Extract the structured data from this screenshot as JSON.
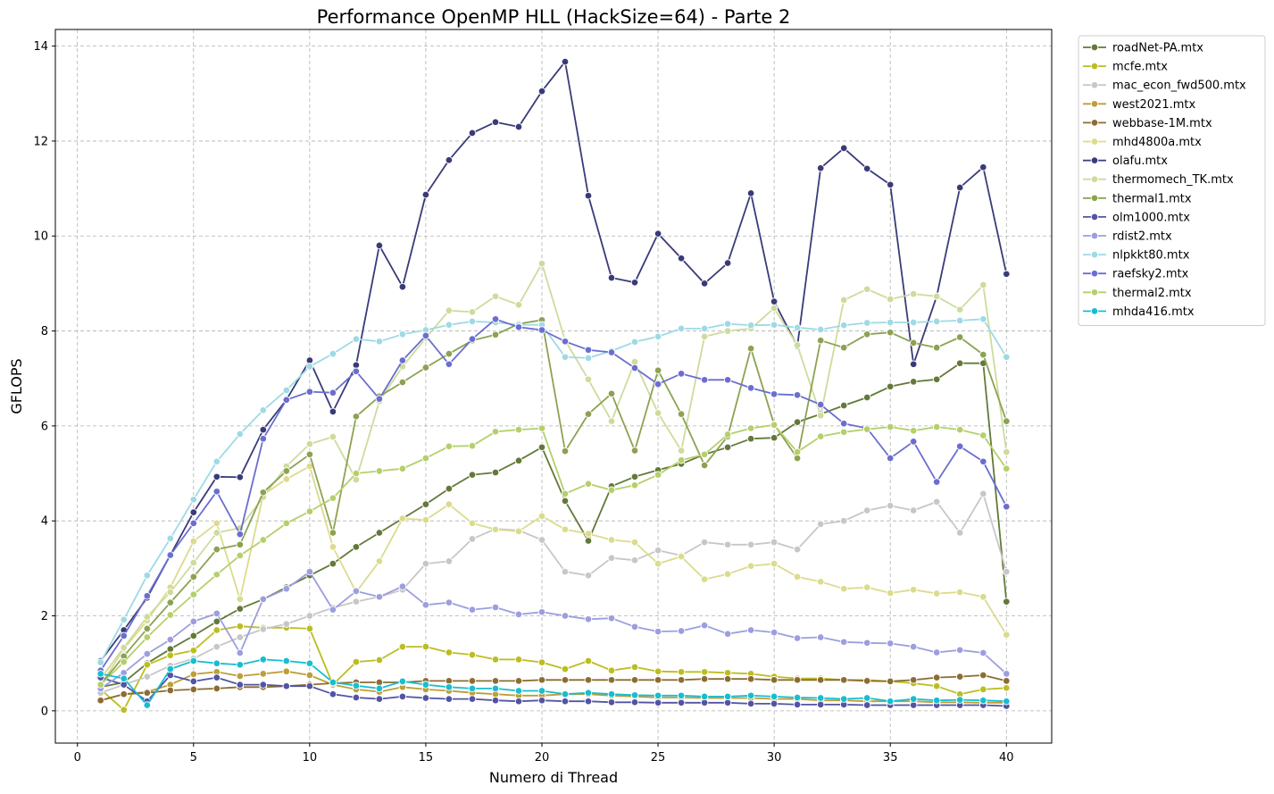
{
  "chart_data": {
    "type": "line",
    "title": "Performance OpenMP HLL (HackSize=64) - Parte 2",
    "xlabel": "Numero di Thread",
    "ylabel": "GFLOPS",
    "xlim": [
      -0.95,
      41.95
    ],
    "ylim": [
      -0.68,
      14.35
    ],
    "xticks": [
      0,
      5,
      10,
      15,
      20,
      25,
      30,
      35,
      40
    ],
    "yticks": [
      0,
      2,
      4,
      6,
      8,
      10,
      12,
      14
    ],
    "grid": true,
    "legend_position": "outside-top-right",
    "x": [
      1,
      2,
      3,
      4,
      5,
      6,
      7,
      8,
      9,
      10,
      11,
      12,
      13,
      14,
      15,
      16,
      17,
      18,
      19,
      20,
      21,
      22,
      23,
      24,
      25,
      26,
      27,
      28,
      29,
      30,
      31,
      32,
      33,
      34,
      35,
      36,
      37,
      38,
      39,
      40
    ],
    "series": [
      {
        "name": "roadNet-PA.mtx",
        "color": "#637939",
        "values": [
          0.5,
          0.6,
          1.0,
          1.3,
          1.58,
          1.88,
          2.15,
          2.35,
          2.6,
          2.85,
          3.1,
          3.45,
          3.75,
          4.05,
          4.35,
          4.68,
          4.97,
          5.02,
          5.27,
          5.55,
          4.42,
          3.58,
          4.73,
          4.93,
          5.07,
          5.2,
          5.4,
          5.55,
          5.73,
          5.75,
          6.08,
          6.25,
          6.43,
          6.6,
          6.83,
          6.93,
          6.98,
          7.32,
          7.32,
          2.3
        ]
      },
      {
        "name": "mcfe.mtx",
        "color": "#bcbd22",
        "values": [
          0.45,
          0.02,
          0.97,
          1.17,
          1.27,
          1.7,
          1.78,
          1.75,
          1.75,
          1.73,
          0.55,
          1.03,
          1.07,
          1.35,
          1.35,
          1.23,
          1.18,
          1.08,
          1.08,
          1.02,
          0.88,
          1.05,
          0.85,
          0.92,
          0.83,
          0.82,
          0.82,
          0.8,
          0.78,
          0.72,
          0.68,
          0.68,
          0.65,
          0.65,
          0.62,
          0.58,
          0.52,
          0.35,
          0.45,
          0.48
        ]
      },
      {
        "name": "mac_econ_fwd500.mtx",
        "color": "#c7c7c7",
        "values": [
          0.38,
          0.55,
          0.72,
          0.95,
          1.1,
          1.35,
          1.55,
          1.72,
          1.83,
          2.0,
          2.17,
          2.3,
          2.4,
          2.55,
          3.1,
          3.15,
          3.62,
          3.83,
          3.8,
          3.6,
          2.93,
          2.85,
          3.22,
          3.17,
          3.38,
          3.27,
          3.55,
          3.5,
          3.5,
          3.55,
          3.4,
          3.93,
          4.0,
          4.22,
          4.32,
          4.22,
          4.4,
          3.75,
          4.57,
          2.93
        ]
      },
      {
        "name": "west2021.mtx",
        "color": "#bd9e39",
        "values": [
          0.22,
          0.35,
          0.4,
          0.55,
          0.77,
          0.82,
          0.73,
          0.78,
          0.83,
          0.75,
          0.55,
          0.45,
          0.4,
          0.5,
          0.45,
          0.42,
          0.38,
          0.35,
          0.32,
          0.32,
          0.35,
          0.35,
          0.32,
          0.3,
          0.28,
          0.28,
          0.27,
          0.27,
          0.27,
          0.25,
          0.25,
          0.22,
          0.22,
          0.2,
          0.2,
          0.2,
          0.18,
          0.18,
          0.17,
          0.17
        ]
      },
      {
        "name": "webbase-1M.mtx",
        "color": "#8c6d31",
        "values": [
          0.22,
          0.35,
          0.38,
          0.43,
          0.45,
          0.47,
          0.5,
          0.5,
          0.52,
          0.55,
          0.58,
          0.6,
          0.6,
          0.6,
          0.63,
          0.63,
          0.63,
          0.63,
          0.63,
          0.65,
          0.65,
          0.65,
          0.65,
          0.65,
          0.65,
          0.65,
          0.67,
          0.67,
          0.67,
          0.65,
          0.65,
          0.65,
          0.65,
          0.63,
          0.62,
          0.65,
          0.7,
          0.72,
          0.75,
          0.63
        ]
      },
      {
        "name": "mhd4800a.mtx",
        "color": "#dbdb8d",
        "values": [
          0.55,
          1.3,
          1.9,
          2.6,
          3.57,
          3.95,
          2.35,
          4.55,
          4.88,
          5.15,
          3.45,
          2.5,
          3.15,
          4.05,
          4.02,
          4.35,
          3.95,
          3.82,
          3.78,
          4.1,
          3.82,
          3.73,
          3.6,
          3.55,
          3.1,
          3.25,
          2.77,
          2.88,
          3.05,
          3.1,
          2.82,
          2.72,
          2.57,
          2.6,
          2.48,
          2.55,
          2.47,
          2.5,
          2.4,
          1.6
        ]
      },
      {
        "name": "olafu.mtx",
        "color": "#393b79",
        "values": [
          1.05,
          1.7,
          2.38,
          3.28,
          4.18,
          4.93,
          4.92,
          5.92,
          6.55,
          7.38,
          6.3,
          7.28,
          9.8,
          8.93,
          10.87,
          11.6,
          12.17,
          12.4,
          12.3,
          13.05,
          13.67,
          10.85,
          9.12,
          9.02,
          10.05,
          9.53,
          9.0,
          9.43,
          10.9,
          8.62,
          7.68,
          11.43,
          11.85,
          11.42,
          11.08,
          7.3,
          8.73,
          11.02,
          11.45,
          9.2
        ]
      },
      {
        "name": "thermomech_TK.mtx",
        "color": "#cedb9c",
        "values": [
          0.68,
          1.33,
          1.98,
          2.5,
          3.12,
          3.75,
          3.85,
          4.5,
          5.15,
          5.62,
          5.77,
          4.87,
          6.52,
          7.25,
          7.85,
          8.43,
          8.4,
          8.73,
          8.55,
          9.42,
          7.8,
          6.98,
          6.1,
          7.35,
          6.27,
          5.48,
          7.88,
          8.0,
          8.05,
          8.48,
          7.7,
          6.22,
          8.65,
          8.88,
          8.67,
          8.78,
          8.73,
          8.45,
          8.97,
          5.45
        ]
      },
      {
        "name": "thermal1.mtx",
        "color": "#8ca252",
        "values": [
          0.55,
          1.15,
          1.73,
          2.28,
          2.82,
          3.4,
          3.5,
          4.6,
          5.05,
          5.4,
          3.75,
          6.2,
          6.62,
          6.92,
          7.23,
          7.52,
          7.8,
          7.92,
          8.15,
          8.23,
          5.47,
          6.25,
          6.68,
          5.48,
          7.17,
          6.25,
          5.17,
          5.78,
          7.63,
          6.03,
          5.32,
          7.8,
          7.65,
          7.93,
          7.97,
          7.75,
          7.65,
          7.87,
          7.5,
          6.1
        ]
      },
      {
        "name": "olm1000.mtx",
        "color": "#5254a3",
        "values": [
          0.7,
          0.55,
          0.2,
          0.75,
          0.62,
          0.7,
          0.55,
          0.55,
          0.52,
          0.52,
          0.35,
          0.28,
          0.25,
          0.3,
          0.27,
          0.25,
          0.25,
          0.22,
          0.2,
          0.22,
          0.2,
          0.2,
          0.18,
          0.18,
          0.17,
          0.17,
          0.17,
          0.17,
          0.15,
          0.15,
          0.13,
          0.13,
          0.13,
          0.12,
          0.12,
          0.12,
          0.12,
          0.12,
          0.12,
          0.1
        ]
      },
      {
        "name": "rdist2.mtx",
        "color": "#9c9ede",
        "values": [
          0.47,
          0.8,
          1.2,
          1.5,
          1.88,
          2.05,
          1.22,
          2.35,
          2.57,
          2.93,
          2.13,
          2.52,
          2.4,
          2.62,
          2.23,
          2.28,
          2.13,
          2.18,
          2.03,
          2.08,
          2.0,
          1.93,
          1.95,
          1.77,
          1.67,
          1.68,
          1.8,
          1.62,
          1.7,
          1.65,
          1.53,
          1.55,
          1.45,
          1.43,
          1.42,
          1.35,
          1.23,
          1.28,
          1.22,
          0.78
        ]
      },
      {
        "name": "nlpkkt80.mtx",
        "color": "#9edae5",
        "values": [
          1.02,
          1.92,
          2.85,
          3.63,
          4.45,
          5.25,
          5.83,
          6.33,
          6.75,
          7.25,
          7.52,
          7.83,
          7.78,
          7.93,
          8.02,
          8.13,
          8.2,
          8.18,
          8.13,
          8.13,
          7.45,
          7.43,
          7.58,
          7.77,
          7.88,
          8.05,
          8.05,
          8.15,
          8.12,
          8.13,
          8.07,
          8.03,
          8.12,
          8.17,
          8.18,
          8.18,
          8.2,
          8.22,
          8.25,
          7.45
        ]
      },
      {
        "name": "raefsky2.mtx",
        "color": "#6b6ecf",
        "values": [
          0.85,
          1.58,
          2.42,
          3.28,
          3.95,
          4.62,
          3.72,
          5.73,
          6.55,
          6.72,
          6.7,
          7.15,
          6.57,
          7.38,
          7.9,
          7.3,
          7.83,
          8.25,
          8.08,
          8.02,
          7.78,
          7.6,
          7.55,
          7.22,
          6.88,
          7.1,
          6.97,
          6.97,
          6.8,
          6.67,
          6.65,
          6.45,
          6.05,
          5.95,
          5.32,
          5.67,
          4.82,
          5.57,
          5.25,
          4.3
        ]
      },
      {
        "name": "thermal2.mtx",
        "color": "#b5cf6b",
        "values": [
          0.55,
          1.03,
          1.55,
          2.02,
          2.45,
          2.87,
          3.27,
          3.6,
          3.95,
          4.2,
          4.48,
          5.0,
          5.05,
          5.1,
          5.32,
          5.57,
          5.58,
          5.88,
          5.92,
          5.95,
          4.57,
          4.78,
          4.65,
          4.75,
          4.97,
          5.28,
          5.4,
          5.82,
          5.95,
          6.02,
          5.45,
          5.78,
          5.87,
          5.93,
          5.98,
          5.9,
          5.98,
          5.92,
          5.8,
          5.1
        ]
      },
      {
        "name": "mhda416.mtx",
        "color": "#17becf",
        "values": [
          0.78,
          0.68,
          0.12,
          0.88,
          1.05,
          1.0,
          0.97,
          1.08,
          1.05,
          1.0,
          0.6,
          0.53,
          0.47,
          0.62,
          0.55,
          0.5,
          0.47,
          0.47,
          0.42,
          0.42,
          0.35,
          0.38,
          0.35,
          0.33,
          0.32,
          0.32,
          0.3,
          0.3,
          0.32,
          0.3,
          0.28,
          0.27,
          0.25,
          0.27,
          0.2,
          0.25,
          0.22,
          0.23,
          0.22,
          0.2
        ]
      }
    ]
  }
}
